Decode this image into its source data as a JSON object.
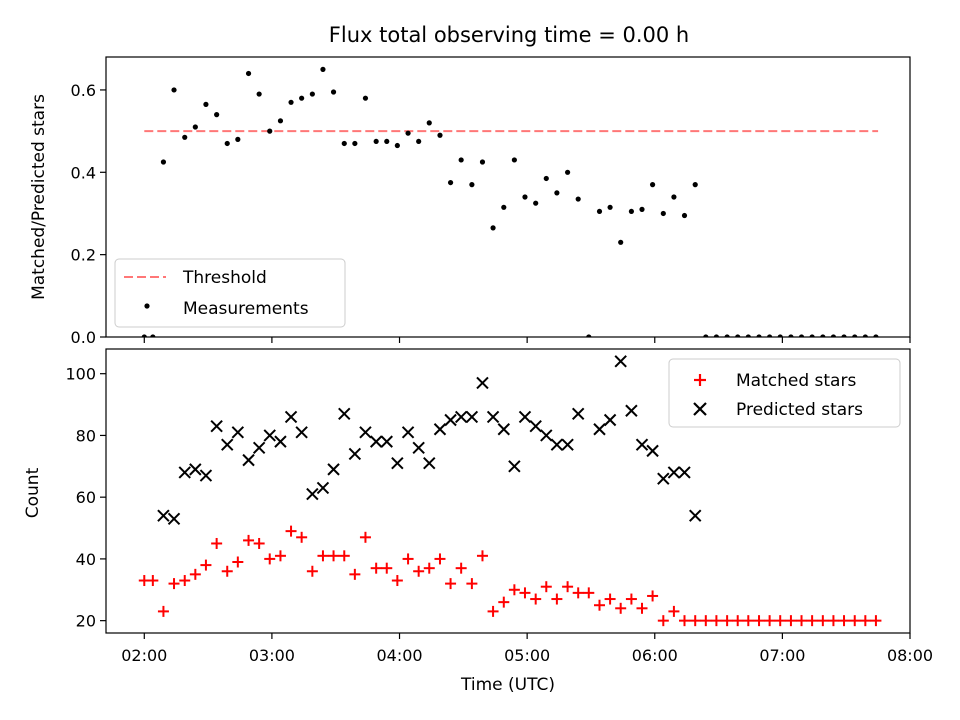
{
  "title": "Flux total observing time = 0.00 h",
  "x_axis": {
    "label": "Time (UTC)",
    "range_hours": [
      1.7,
      8.0
    ],
    "tick_values": [
      2,
      3,
      4,
      5,
      6,
      7,
      8
    ],
    "tick_labels": [
      "02:00",
      "03:00",
      "04:00",
      "05:00",
      "06:00",
      "07:00",
      "08:00"
    ]
  },
  "chart_data": [
    {
      "type": "scatter",
      "panel": "top",
      "ylabel": "Matched/Predicted stars",
      "ylim": [
        0,
        0.68
      ],
      "yticks": [
        0.0,
        0.2,
        0.4,
        0.6
      ],
      "ytick_labels": [
        "0.0",
        "0.2",
        "0.4",
        "0.6"
      ],
      "grid": false,
      "legend_position": "lower-left",
      "threshold": {
        "name": "Threshold",
        "value": 0.5,
        "x_range": [
          2.0,
          7.75
        ],
        "color": "#ff7777",
        "style": "dashed"
      },
      "series": [
        {
          "name": "Measurements",
          "color": "#000000",
          "marker": "dot",
          "x": [
            2.0,
            2.067,
            2.15,
            2.233,
            2.317,
            2.4,
            2.483,
            2.567,
            2.65,
            2.733,
            2.817,
            2.9,
            2.983,
            3.067,
            3.15,
            3.233,
            3.317,
            3.4,
            3.483,
            3.567,
            3.65,
            3.733,
            3.817,
            3.9,
            3.983,
            4.067,
            4.15,
            4.233,
            4.317,
            4.4,
            4.483,
            4.567,
            4.65,
            4.733,
            4.817,
            4.9,
            4.983,
            5.067,
            5.15,
            5.233,
            5.317,
            5.4,
            5.483,
            5.567,
            5.65,
            5.733,
            5.817,
            5.9,
            5.983,
            6.067,
            6.15,
            6.233,
            6.317,
            6.4,
            6.483,
            6.567,
            6.65,
            6.733,
            6.817,
            6.9,
            6.983,
            7.067,
            7.15,
            7.233,
            7.317,
            7.4,
            7.483,
            7.567,
            7.65,
            7.733
          ],
          "y": [
            0.0,
            0.0,
            0.425,
            0.6,
            0.485,
            0.51,
            0.565,
            0.54,
            0.47,
            0.48,
            0.64,
            0.59,
            0.5,
            0.525,
            0.57,
            0.58,
            0.59,
            0.65,
            0.595,
            0.47,
            0.47,
            0.58,
            0.475,
            0.475,
            0.465,
            0.495,
            0.475,
            0.52,
            0.49,
            0.375,
            0.43,
            0.37,
            0.425,
            0.265,
            0.315,
            0.43,
            0.34,
            0.325,
            0.385,
            0.35,
            0.4,
            0.335,
            0.0,
            0.305,
            0.315,
            0.23,
            0.305,
            0.31,
            0.37,
            0.3,
            0.34,
            0.295,
            0.37,
            0.0,
            0.0,
            0.0,
            0.0,
            0.0,
            0.0,
            0.0,
            0.0,
            0.0,
            0.0,
            0.0,
            0.0,
            0.0,
            0.0,
            0.0,
            0.0,
            0.0
          ]
        }
      ]
    },
    {
      "type": "scatter",
      "panel": "bottom",
      "xlabel": "Time (UTC)",
      "ylabel": "Count",
      "ylim": [
        16,
        108
      ],
      "yticks": [
        20,
        40,
        60,
        80,
        100
      ],
      "ytick_labels": [
        "20",
        "40",
        "60",
        "80",
        "100"
      ],
      "grid": false,
      "legend_position": "upper-right",
      "series": [
        {
          "name": "Matched stars",
          "color": "#ff0000",
          "marker": "plus",
          "x": [
            2.0,
            2.067,
            2.15,
            2.233,
            2.317,
            2.4,
            2.483,
            2.567,
            2.65,
            2.733,
            2.817,
            2.9,
            2.983,
            3.067,
            3.15,
            3.233,
            3.317,
            3.4,
            3.483,
            3.567,
            3.65,
            3.733,
            3.817,
            3.9,
            3.983,
            4.067,
            4.15,
            4.233,
            4.317,
            4.4,
            4.483,
            4.567,
            4.65,
            4.733,
            4.817,
            4.9,
            4.983,
            5.067,
            5.15,
            5.233,
            5.317,
            5.4,
            5.483,
            5.567,
            5.65,
            5.733,
            5.817,
            5.9,
            5.983,
            6.067,
            6.15,
            6.233,
            6.317,
            6.4,
            6.483,
            6.567,
            6.65,
            6.733,
            6.817,
            6.9,
            6.983,
            7.067,
            7.15,
            7.233,
            7.317,
            7.4,
            7.483,
            7.567,
            7.65,
            7.733
          ],
          "y": [
            33,
            33,
            23,
            32,
            33,
            35,
            38,
            45,
            36,
            39,
            46,
            45,
            40,
            41,
            49,
            47,
            36,
            41,
            41,
            41,
            35,
            47,
            37,
            37,
            33,
            40,
            36,
            37,
            40,
            32,
            37,
            32,
            41,
            23,
            26,
            30,
            29,
            27,
            31,
            27,
            31,
            29,
            29,
            25,
            27,
            24,
            27,
            24,
            28,
            20,
            23,
            20,
            20,
            20,
            20,
            20,
            20,
            20,
            20,
            20,
            20,
            20,
            20,
            20,
            20,
            20,
            20,
            20,
            20,
            20
          ]
        },
        {
          "name": "Predicted stars",
          "color": "#000000",
          "marker": "x",
          "x": [
            2.15,
            2.233,
            2.317,
            2.4,
            2.483,
            2.567,
            2.65,
            2.733,
            2.817,
            2.9,
            2.983,
            3.067,
            3.15,
            3.233,
            3.317,
            3.4,
            3.483,
            3.567,
            3.65,
            3.733,
            3.817,
            3.9,
            3.983,
            4.067,
            4.15,
            4.233,
            4.317,
            4.4,
            4.483,
            4.567,
            4.65,
            4.733,
            4.817,
            4.9,
            4.983,
            5.067,
            5.15,
            5.233,
            5.317,
            5.4,
            5.567,
            5.65,
            5.733,
            5.817,
            5.9,
            5.983,
            6.067,
            6.15,
            6.233,
            6.317
          ],
          "y": [
            54,
            53,
            68,
            69,
            67,
            83,
            77,
            81,
            72,
            76,
            80,
            78,
            86,
            81,
            61,
            63,
            69,
            87,
            74,
            81,
            78,
            78,
            71,
            81,
            76,
            71,
            82,
            85,
            86,
            86,
            97,
            86,
            82,
            70,
            86,
            83,
            80,
            77,
            77,
            87,
            82,
            85,
            104,
            88,
            77,
            75,
            66,
            68,
            68,
            54
          ]
        }
      ]
    }
  ]
}
